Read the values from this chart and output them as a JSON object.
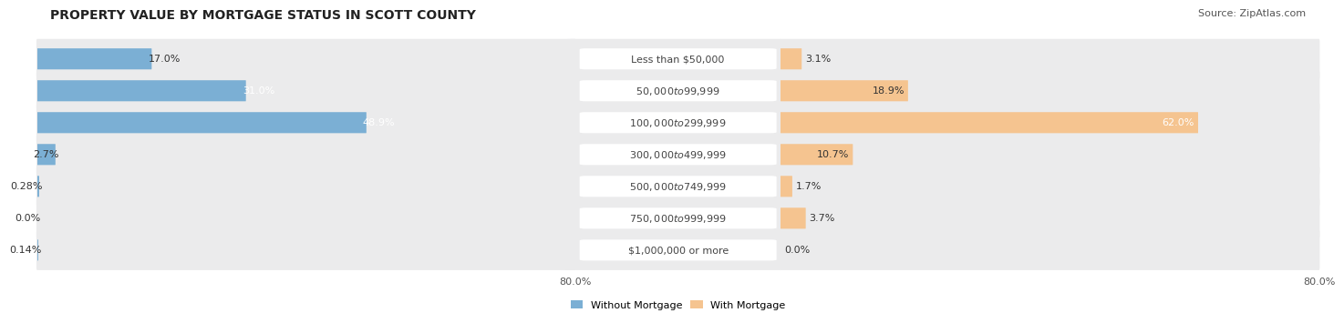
{
  "title": "PROPERTY VALUE BY MORTGAGE STATUS IN SCOTT COUNTY",
  "source": "Source: ZipAtlas.com",
  "categories": [
    "Less than $50,000",
    "$50,000 to $99,999",
    "$100,000 to $299,999",
    "$300,000 to $499,999",
    "$500,000 to $749,999",
    "$750,000 to $999,999",
    "$1,000,000 or more"
  ],
  "without_mortgage": [
    17.0,
    31.0,
    48.9,
    2.7,
    0.28,
    0.0,
    0.14
  ],
  "with_mortgage": [
    3.1,
    18.9,
    62.0,
    10.7,
    1.7,
    3.7,
    0.0
  ],
  "color_without": "#7BAFD4",
  "color_with": "#F5C490",
  "axis_limit": 80.0,
  "bar_height": 0.6,
  "background_row_color": "#EBEBEC",
  "title_fontsize": 10,
  "label_fontsize": 8,
  "tick_fontsize": 8,
  "source_fontsize": 8,
  "category_fontsize": 8,
  "legend_fontsize": 8
}
